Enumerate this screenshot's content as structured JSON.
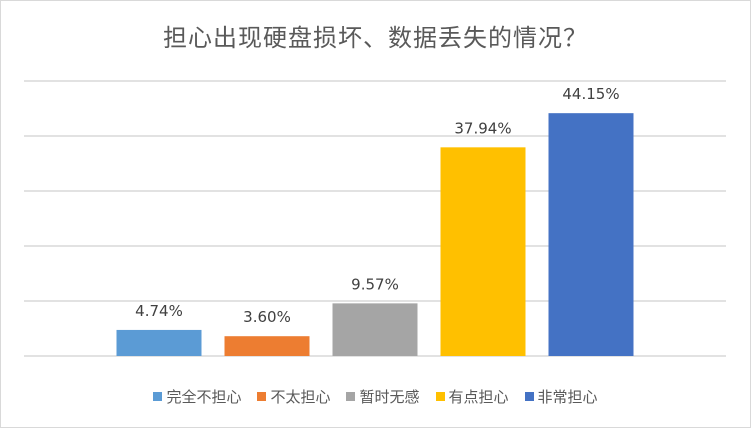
{
  "chart_data": {
    "type": "bar",
    "title": "担心出现硬盘损坏、数据丢失的情况？",
    "categories": [
      "完全不担心",
      "不太担心",
      "暂时无感",
      "有点担心",
      "非常担心"
    ],
    "values": [
      4.74,
      3.6,
      9.57,
      37.94,
      44.15
    ],
    "data_labels": [
      "4.74%",
      "3.60%",
      "9.57%",
      "37.94%",
      "44.15%"
    ],
    "colors": [
      "#5b9bd5",
      "#ed7d31",
      "#a5a5a5",
      "#ffc000",
      "#4472c4"
    ],
    "ylim": [
      0,
      50
    ],
    "y_gridline_step": 10,
    "grid": true,
    "y_axis_labels_shown": false,
    "legend": "bottom"
  }
}
